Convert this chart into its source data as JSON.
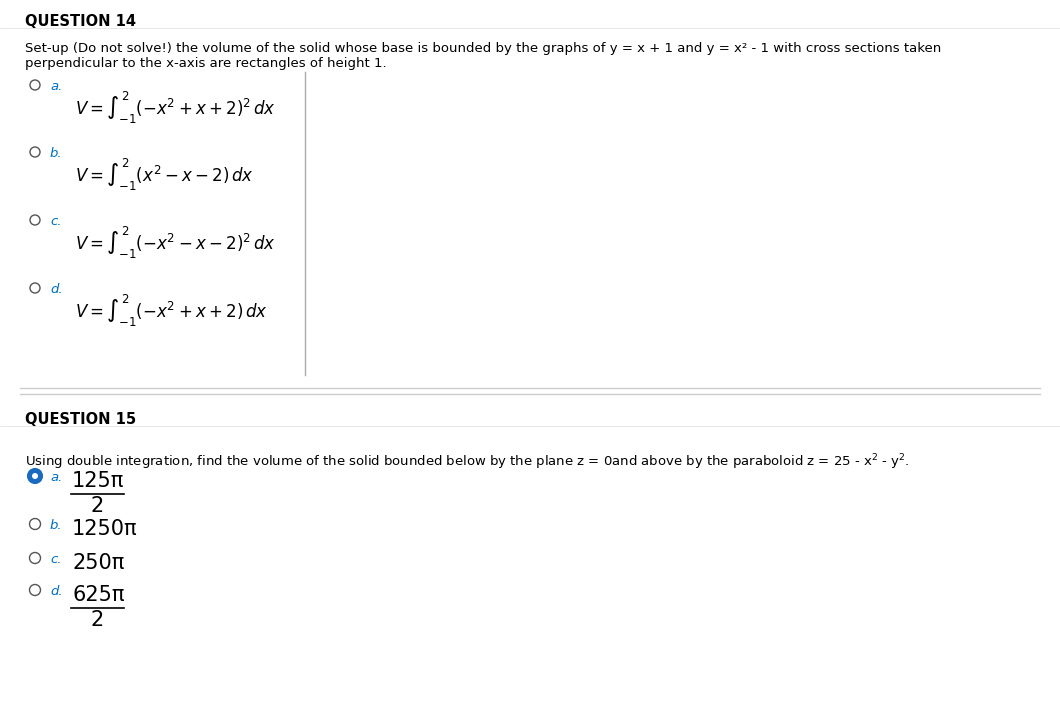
{
  "bg_color": "#ffffff",
  "q14_title": "QUESTION 14",
  "q14_prompt_line1": "Set-up (Do not solve!) the volume of the solid whose base is bounded by the graphs of y = x + 1 and y = x² - 1 with cross sections taken",
  "q14_prompt_line2": "perpendicular to the x-axis are rectangles of height 1.",
  "q14_options": [
    {
      "label": "a.",
      "selected": false
    },
    {
      "label": "b.",
      "selected": false
    },
    {
      "label": "c.",
      "selected": false
    },
    {
      "label": "d.",
      "selected": false
    }
  ],
  "q14_formulas": [
    "$V=\\int_{-1}^{2}(-x^2+x+2)^2\\,dx$",
    "$V=\\int_{-1}^{2}(x^2-x-2)\\,dx$",
    "$V=\\int_{-1}^{2}(-x^2-x-2)^2\\,dx$",
    "$V=\\int_{-1}^{2}(-x^2+x+2)\\,dx$"
  ],
  "q15_title": "QUESTION 15",
  "q15_prompt": "Using double integration, find the volume of the solid bounded below by the plane z = 0and above by the paraboloid z = 25 - x$^2$ - y$^2$.",
  "q15_options": [
    {
      "label": "a.",
      "text_num": "125π",
      "text_den": "2",
      "fraction": true,
      "selected": true
    },
    {
      "label": "b.",
      "text_num": "1250π",
      "text_den": null,
      "fraction": false,
      "selected": false
    },
    {
      "label": "c.",
      "text_num": "250π",
      "text_den": null,
      "fraction": false,
      "selected": false
    },
    {
      "label": "d.",
      "text_num": "625π",
      "text_den": "2",
      "fraction": true,
      "selected": false
    }
  ],
  "text_color": "#000000",
  "radio_color": "#555555",
  "selected_color": "#1a6bbf",
  "label_color": "#0070c0",
  "title_fontsize": 10.5,
  "prompt_fontsize": 9.5,
  "option_label_fontsize": 9.5,
  "formula_fontsize": 12,
  "q15_answer_fontsize": 15
}
